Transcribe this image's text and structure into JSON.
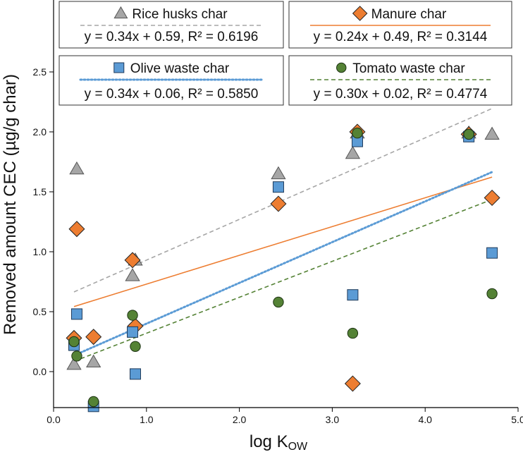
{
  "chart_data": {
    "type": "scatter",
    "xlabel_main": "log K",
    "xlabel_sub": "OW",
    "ylabel": "Removed amount CEC (µg/g char)",
    "xlim": [
      0.0,
      5.0
    ],
    "ylim": [
      -0.3,
      3.1
    ],
    "x_ticks": [
      "0.0",
      "1.0",
      "2.0",
      "3.0",
      "4.0",
      "5.0"
    ],
    "y_ticks": [
      "0.0",
      "0.5",
      "1.0",
      "1.5",
      "2.0",
      "2.5"
    ],
    "x_tick_values": [
      0,
      1,
      2,
      3,
      4,
      5
    ],
    "y_tick_values": [
      0,
      0.5,
      1,
      1.5,
      2,
      2.5
    ],
    "grid": false,
    "legend_placement": "top",
    "series": [
      {
        "name": "Rice husks char",
        "marker": "triangle",
        "color": "#a6a6a6",
        "line_color": "#a6a6a6",
        "line_style": "dashed",
        "equation": "y = 0.34x + 0.59, R² = 0.6196",
        "slope": 0.34,
        "intercept": 0.59,
        "fit_range": [
          0.22,
          4.72
        ],
        "points": [
          [
            0.22,
            0.06
          ],
          [
            0.25,
            1.69
          ],
          [
            0.43,
            0.08
          ],
          [
            0.85,
            0.8
          ],
          [
            0.88,
            0.93
          ],
          [
            2.42,
            1.65
          ],
          [
            3.22,
            1.82
          ],
          [
            3.27,
            1.99
          ],
          [
            4.47,
            1.99
          ],
          [
            4.72,
            1.98
          ]
        ]
      },
      {
        "name": "Manure char",
        "marker": "diamond",
        "color": "#ed7d31",
        "line_color": "#ed7d31",
        "line_style": "solid",
        "equation": "y = 0.24x + 0.49, R² = 0.3144",
        "slope": 0.24,
        "intercept": 0.49,
        "fit_range": [
          0.22,
          4.72
        ],
        "points": [
          [
            0.22,
            0.28
          ],
          [
            0.25,
            1.19
          ],
          [
            0.43,
            0.29
          ],
          [
            0.85,
            0.93
          ],
          [
            0.88,
            0.38
          ],
          [
            2.42,
            1.4
          ],
          [
            3.22,
            -0.1
          ],
          [
            3.27,
            2.0
          ],
          [
            4.47,
            1.98
          ],
          [
            4.72,
            1.45
          ]
        ]
      },
      {
        "name": "Olive waste char",
        "marker": "square",
        "color": "#5b9bd5",
        "line_color": "#5b9bd5",
        "line_style": "dotted",
        "equation": "y = 0.34x + 0.06, R² = 0.5850",
        "slope": 0.34,
        "intercept": 0.06,
        "fit_range": [
          0.22,
          4.72
        ],
        "points": [
          [
            0.22,
            0.22
          ],
          [
            0.25,
            0.48
          ],
          [
            0.43,
            -0.29
          ],
          [
            0.85,
            0.33
          ],
          [
            0.88,
            -0.02
          ],
          [
            2.42,
            1.54
          ],
          [
            3.22,
            0.64
          ],
          [
            3.27,
            1.92
          ],
          [
            4.47,
            1.96
          ],
          [
            4.72,
            0.99
          ]
        ]
      },
      {
        "name": "Tomato waste char",
        "marker": "circle",
        "color": "#548235",
        "line_color": "#548235",
        "line_style": "dashed",
        "equation": "y = 0.30x + 0.02, R² = 0.4774",
        "slope": 0.3,
        "intercept": 0.02,
        "fit_range": [
          0.22,
          4.72
        ],
        "points": [
          [
            0.22,
            0.25
          ],
          [
            0.25,
            0.13
          ],
          [
            0.43,
            -0.25
          ],
          [
            0.85,
            0.47
          ],
          [
            0.88,
            0.21
          ],
          [
            2.42,
            0.58
          ],
          [
            3.22,
            0.32
          ],
          [
            3.27,
            1.99
          ],
          [
            4.47,
            1.98
          ],
          [
            4.72,
            0.65
          ]
        ]
      }
    ]
  }
}
